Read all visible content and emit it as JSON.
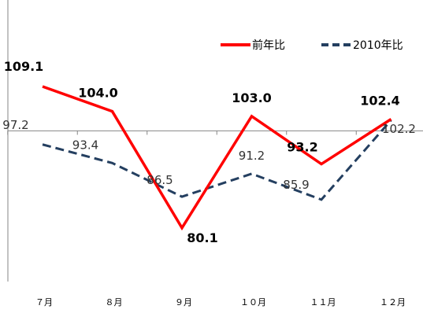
{
  "chart_data": {
    "type": "line",
    "title": "",
    "xlabel": "",
    "ylabel": "",
    "categories": [
      "７月",
      "８月",
      "９月",
      "１０月",
      "１１月",
      "１２月"
    ],
    "series": [
      {
        "name": "前年比",
        "values": [
          109.1,
          104.0,
          80.1,
          103.0,
          93.2,
          102.4
        ],
        "color": "#ff0000",
        "style": "solid",
        "label_weight": "bold"
      },
      {
        "name": "2010年比",
        "values": [
          97.2,
          93.4,
          86.5,
          91.2,
          85.9,
          102.2
        ],
        "color": "#243f60",
        "style": "dashed",
        "label_weight": "normal"
      }
    ],
    "baseline": 100,
    "ylim": [
      72,
      122
    ],
    "grid": false,
    "legend": "top-right"
  },
  "value_labels": {
    "s0": [
      "109.1",
      "104.0",
      "80.1",
      "103.0",
      "93.2",
      "102.4"
    ],
    "s1": [
      "97.2",
      "93.4",
      "86.5",
      "91.2",
      "85.9",
      "102.2"
    ]
  }
}
